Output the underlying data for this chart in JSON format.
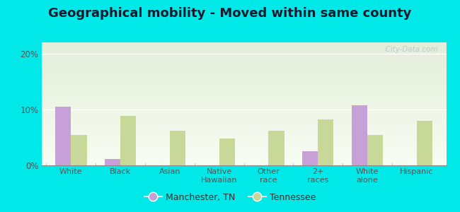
{
  "title": "Geographical mobility - Moved within same county",
  "categories": [
    "White",
    "Black",
    "Asian",
    "Native\nHawaiian",
    "Other\nrace",
    "2+\nraces",
    "White\nalone",
    "Hispanic"
  ],
  "manchester_values": [
    10.5,
    1.2,
    0.0,
    0.0,
    0.0,
    2.5,
    10.8,
    0.0
  ],
  "tennessee_values": [
    5.5,
    8.8,
    6.2,
    4.8,
    6.2,
    8.2,
    5.5,
    8.0
  ],
  "manchester_color": "#c8a0d8",
  "tennessee_color": "#c8d898",
  "background_outer": "#00e8e8",
  "ylim": [
    0,
    22
  ],
  "yticks": [
    0,
    10,
    20
  ],
  "ytick_labels": [
    "0%",
    "10%",
    "20%"
  ],
  "legend_labels": [
    "Manchester, TN",
    "Tennessee"
  ],
  "watermark": "  City-Data.com",
  "title_fontsize": 13,
  "bar_width": 0.32
}
